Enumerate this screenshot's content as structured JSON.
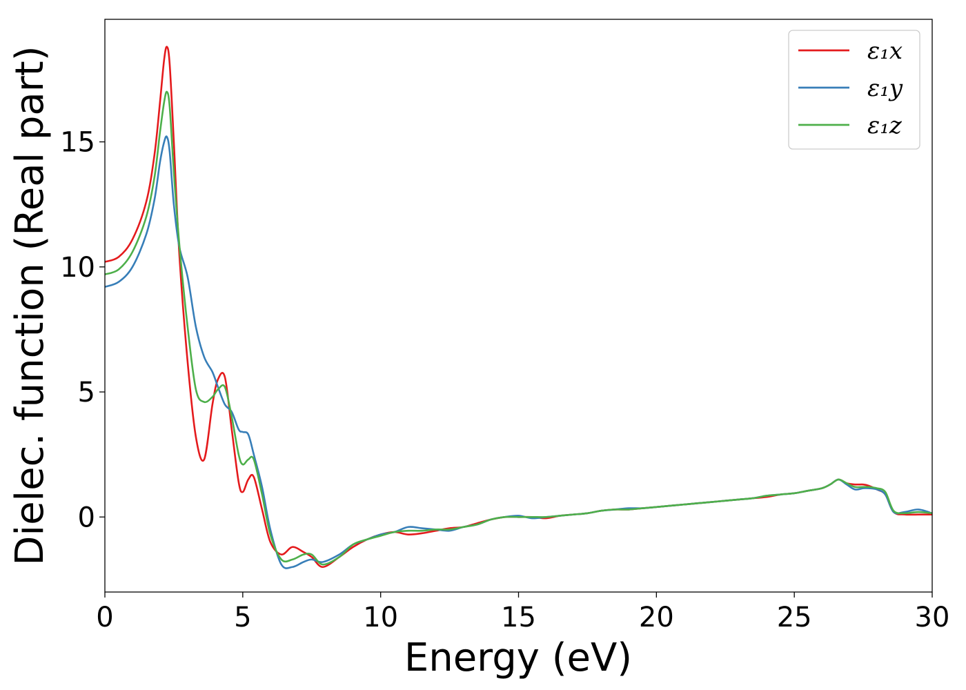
{
  "chart_data": {
    "type": "line",
    "xlabel": "Energy (eV)",
    "ylabel": "Dielec. function (Real part)",
    "xlim": [
      0,
      30
    ],
    "ylim": [
      -3.0,
      19.9
    ],
    "xticks": [
      0,
      5,
      10,
      15,
      20,
      25,
      30
    ],
    "yticks": [
      0,
      5,
      10,
      15
    ],
    "grid": false,
    "legend_position": "top-right",
    "x": [
      0,
      0.5,
      1.0,
      1.5,
      1.8,
      2.0,
      2.15,
      2.25,
      2.35,
      2.5,
      2.7,
      3.0,
      3.3,
      3.6,
      3.9,
      4.1,
      4.35,
      4.6,
      4.85,
      5.0,
      5.2,
      5.4,
      5.7,
      6.0,
      6.4,
      6.8,
      7.2,
      7.5,
      7.9,
      8.5,
      9.0,
      9.5,
      10.0,
      10.5,
      11.0,
      11.5,
      12.0,
      12.5,
      13.0,
      13.5,
      14.0,
      14.5,
      15.0,
      15.5,
      16.0,
      16.5,
      17.0,
      17.5,
      18.0,
      18.5,
      19.0,
      19.5,
      20.0,
      20.5,
      21.0,
      21.5,
      22.0,
      22.5,
      23.0,
      23.5,
      24.0,
      24.5,
      25.0,
      25.5,
      26.0,
      26.3,
      26.6,
      26.9,
      27.2,
      27.5,
      27.7,
      28.0,
      28.3,
      28.6,
      29.0,
      29.5,
      30.0
    ],
    "series": [
      {
        "name": "ε₁x",
        "color": "#e41a1c",
        "values": [
          10.2,
          10.4,
          11.1,
          12.6,
          14.5,
          16.6,
          18.3,
          18.8,
          18.1,
          15.0,
          10.5,
          6.2,
          3.2,
          2.3,
          4.5,
          5.5,
          5.6,
          3.5,
          1.4,
          1.0,
          1.5,
          1.6,
          0.3,
          -1.0,
          -1.5,
          -1.2,
          -1.4,
          -1.6,
          -2.0,
          -1.6,
          -1.2,
          -0.9,
          -0.7,
          -0.6,
          -0.7,
          -0.65,
          -0.55,
          -0.45,
          -0.4,
          -0.25,
          -0.1,
          0.0,
          0.0,
          0.0,
          -0.05,
          0.05,
          0.1,
          0.15,
          0.25,
          0.3,
          0.3,
          0.35,
          0.4,
          0.45,
          0.5,
          0.55,
          0.6,
          0.65,
          0.7,
          0.75,
          0.8,
          0.9,
          0.95,
          1.05,
          1.15,
          1.3,
          1.5,
          1.35,
          1.3,
          1.3,
          1.25,
          1.1,
          0.9,
          0.2,
          0.1,
          0.1,
          0.1
        ]
      },
      {
        "name": "ε₁y",
        "color": "#377eb8",
        "values": [
          9.2,
          9.4,
          10.0,
          11.3,
          12.7,
          14.2,
          15.0,
          15.2,
          14.6,
          12.5,
          10.8,
          9.6,
          7.6,
          6.4,
          5.8,
          5.2,
          4.5,
          4.2,
          3.5,
          3.4,
          3.3,
          2.5,
          1.2,
          -0.5,
          -1.9,
          -2.0,
          -1.8,
          -1.7,
          -1.8,
          -1.5,
          -1.1,
          -0.9,
          -0.7,
          -0.6,
          -0.4,
          -0.45,
          -0.5,
          -0.55,
          -0.4,
          -0.3,
          -0.1,
          0.0,
          0.05,
          -0.05,
          0.0,
          0.05,
          0.1,
          0.15,
          0.25,
          0.3,
          0.35,
          0.35,
          0.4,
          0.45,
          0.5,
          0.55,
          0.6,
          0.65,
          0.7,
          0.75,
          0.85,
          0.9,
          0.95,
          1.05,
          1.15,
          1.3,
          1.5,
          1.3,
          1.1,
          1.15,
          1.15,
          1.1,
          0.9,
          0.2,
          0.2,
          0.3,
          0.15
        ]
      },
      {
        "name": "ε₁z",
        "color": "#4daf4a",
        "values": [
          9.7,
          9.9,
          10.6,
          12.0,
          13.6,
          15.4,
          16.6,
          17.0,
          16.4,
          13.8,
          10.9,
          7.6,
          5.1,
          4.6,
          4.8,
          5.1,
          5.2,
          4.0,
          2.5,
          2.1,
          2.3,
          2.3,
          0.9,
          -0.7,
          -1.7,
          -1.7,
          -1.5,
          -1.5,
          -1.9,
          -1.6,
          -1.1,
          -0.9,
          -0.75,
          -0.6,
          -0.55,
          -0.55,
          -0.5,
          -0.5,
          -0.4,
          -0.3,
          -0.1,
          0.0,
          0.0,
          0.0,
          0.0,
          0.05,
          0.1,
          0.15,
          0.25,
          0.3,
          0.3,
          0.35,
          0.4,
          0.45,
          0.5,
          0.55,
          0.6,
          0.65,
          0.7,
          0.75,
          0.85,
          0.9,
          0.95,
          1.05,
          1.15,
          1.3,
          1.5,
          1.35,
          1.2,
          1.2,
          1.2,
          1.15,
          1.0,
          0.25,
          0.15,
          0.2,
          0.15
        ]
      }
    ]
  }
}
